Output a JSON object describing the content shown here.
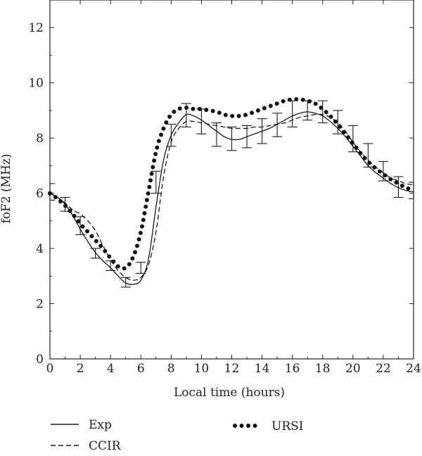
{
  "chart_data": {
    "type": "line",
    "xlabel": "Local time (hours)",
    "ylabel": "foF2 (MHz)",
    "xlim": [
      0,
      24
    ],
    "ylim": [
      0,
      13
    ],
    "xticks": [
      0,
      2,
      4,
      6,
      8,
      10,
      12,
      14,
      16,
      18,
      20,
      22,
      24
    ],
    "yticks": [
      0,
      2,
      4,
      6,
      8,
      10,
      12
    ],
    "grid": false,
    "legend_position": "bottom",
    "series": [
      {
        "name": "Exp",
        "style": "solid",
        "color": "#1a1a1a",
        "x": [
          0,
          0.5,
          1,
          1.5,
          2,
          2.5,
          3,
          3.5,
          4,
          4.5,
          5,
          5.5,
          6,
          6.5,
          7,
          7.5,
          8,
          8.5,
          9,
          9.5,
          10,
          10.5,
          11,
          11.5,
          12,
          12.5,
          13,
          13.5,
          14,
          14.5,
          15,
          15.5,
          16,
          16.5,
          17,
          17.5,
          18,
          18.5,
          19,
          19.5,
          20,
          20.5,
          21,
          21.5,
          22,
          22.5,
          23,
          23.5,
          24
        ],
        "y": [
          6.0,
          5.85,
          5.6,
          5.2,
          4.7,
          4.25,
          3.85,
          3.55,
          3.3,
          3.0,
          2.75,
          2.7,
          2.85,
          3.6,
          5.5,
          7.2,
          8.1,
          8.55,
          8.85,
          8.8,
          8.65,
          8.45,
          8.25,
          8.05,
          7.95,
          7.95,
          8.05,
          8.15,
          8.25,
          8.35,
          8.5,
          8.65,
          8.8,
          8.9,
          8.95,
          8.9,
          8.8,
          8.6,
          8.35,
          8.05,
          7.7,
          7.35,
          7.0,
          6.75,
          6.55,
          6.35,
          6.2,
          6.1,
          6.05
        ]
      },
      {
        "name": "CCIR",
        "style": "dashed",
        "color": "#1a1a1a",
        "x": [
          0,
          0.5,
          1,
          1.5,
          2,
          2.5,
          3,
          3.5,
          4,
          4.5,
          5,
          5.5,
          6,
          6.5,
          7,
          7.5,
          8,
          8.5,
          9,
          9.5,
          10,
          10.5,
          11,
          11.5,
          12,
          12.5,
          13,
          13.5,
          14,
          14.5,
          15,
          15.5,
          16,
          16.5,
          17,
          17.5,
          18,
          18.5,
          19,
          19.5,
          20,
          20.5,
          21,
          21.5,
          22,
          22.5,
          23,
          23.5,
          24
        ],
        "y": [
          6.0,
          5.85,
          5.65,
          5.4,
          5.25,
          5.0,
          4.65,
          4.1,
          3.6,
          3.2,
          2.95,
          2.85,
          2.95,
          3.4,
          4.6,
          6.6,
          7.85,
          8.35,
          8.6,
          8.6,
          8.55,
          8.5,
          8.45,
          8.4,
          8.35,
          8.35,
          8.35,
          8.4,
          8.4,
          8.45,
          8.5,
          8.55,
          8.65,
          8.75,
          8.8,
          8.85,
          8.85,
          8.75,
          8.55,
          8.25,
          7.85,
          7.5,
          7.2,
          6.95,
          6.75,
          6.55,
          6.45,
          6.35,
          6.3
        ]
      },
      {
        "name": "URSI",
        "style": "dotted",
        "color": "#111111",
        "x": [
          0,
          0.5,
          1,
          1.5,
          2,
          2.5,
          3,
          3.5,
          4,
          4.5,
          5,
          5.5,
          6,
          6.5,
          7,
          7.5,
          8,
          8.5,
          9,
          9.5,
          10,
          10.5,
          11,
          11.5,
          12,
          12.5,
          13,
          13.5,
          14,
          14.5,
          15,
          15.5,
          16,
          16.5,
          17,
          17.5,
          18,
          18.5,
          19,
          19.5,
          20,
          20.5,
          21,
          21.5,
          22,
          22.5,
          23,
          23.5,
          24
        ],
        "y": [
          6.0,
          5.8,
          5.55,
          5.25,
          4.9,
          4.6,
          4.3,
          4.0,
          3.65,
          3.35,
          3.3,
          3.7,
          4.6,
          6.05,
          7.5,
          8.35,
          8.85,
          9.05,
          9.1,
          9.05,
          9.05,
          9.0,
          8.95,
          8.85,
          8.8,
          8.8,
          8.85,
          8.95,
          9.05,
          9.15,
          9.25,
          9.35,
          9.4,
          9.4,
          9.35,
          9.25,
          9.05,
          8.8,
          8.5,
          8.15,
          7.8,
          7.45,
          7.15,
          6.9,
          6.7,
          6.5,
          6.35,
          6.2,
          6.1
        ]
      }
    ],
    "error_bars": {
      "x": [
        0,
        1,
        2,
        3,
        4,
        5,
        6,
        7,
        8,
        9,
        10,
        11,
        12,
        13,
        14,
        15,
        16,
        17,
        18,
        19,
        20,
        21,
        22,
        23,
        24
      ],
      "low": [
        5.75,
        5.35,
        4.5,
        3.65,
        3.2,
        2.6,
        3.1,
        6.0,
        7.7,
        8.4,
        8.15,
        7.7,
        7.55,
        7.65,
        7.8,
        8.05,
        8.4,
        8.65,
        8.55,
        8.15,
        7.5,
        6.95,
        6.45,
        5.85,
        5.8
      ],
      "high": [
        6.35,
        5.85,
        5.15,
        4.0,
        3.55,
        2.95,
        3.5,
        6.8,
        8.5,
        9.25,
        9.05,
        8.55,
        8.4,
        8.45,
        8.7,
        8.9,
        9.35,
        9.35,
        9.35,
        9.0,
        8.45,
        7.8,
        7.15,
        6.6,
        6.4
      ]
    }
  }
}
